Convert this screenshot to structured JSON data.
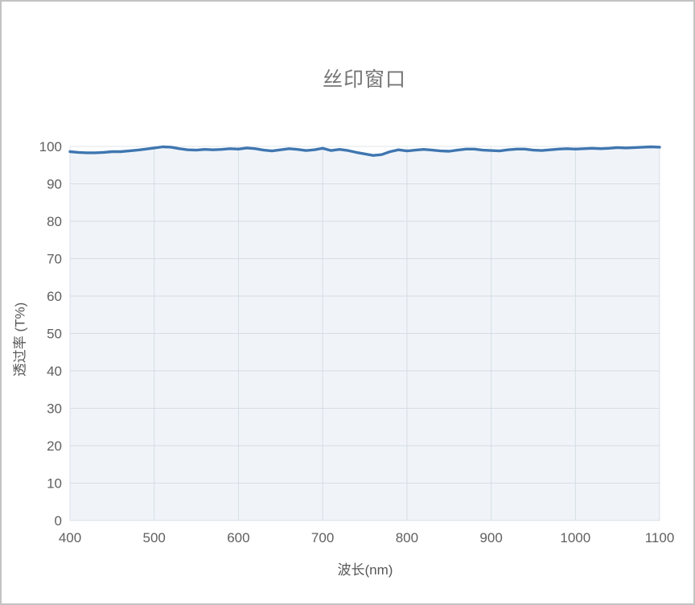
{
  "window": {
    "border_color": "#c2c2c2",
    "background": "#ffffff"
  },
  "chart": {
    "title": "丝印窗口",
    "xlabel": "波长(nm)",
    "ylabel": "透过率 (T%)",
    "title_color": "#757575",
    "axis_title_color": "#575757",
    "tick_label_color": "#606060",
    "grid_color": "#e2e6ea",
    "line_color": "#3f76b0",
    "area_color": "rgba(63,118,176,0.08)"
  },
  "chart_data": {
    "type": "line",
    "title": "丝印窗口",
    "xlabel": "波长(nm)",
    "ylabel": "透过率 (T%)",
    "xlim": [
      400,
      1100
    ],
    "ylim": [
      0,
      100
    ],
    "x_ticks": [
      400,
      500,
      600,
      700,
      800,
      900,
      1000,
      1100
    ],
    "y_ticks": [
      0,
      10,
      20,
      30,
      40,
      50,
      60,
      70,
      80,
      90,
      100
    ],
    "grid": true,
    "legend": false,
    "series": [
      {
        "name": "透过率",
        "x": [
          400,
          410,
          420,
          430,
          440,
          450,
          460,
          470,
          480,
          490,
          500,
          510,
          520,
          530,
          540,
          550,
          560,
          570,
          580,
          590,
          600,
          610,
          620,
          630,
          640,
          650,
          660,
          670,
          680,
          690,
          700,
          710,
          720,
          730,
          740,
          750,
          760,
          770,
          780,
          790,
          800,
          810,
          820,
          830,
          840,
          850,
          860,
          870,
          880,
          890,
          900,
          910,
          920,
          930,
          940,
          950,
          960,
          970,
          980,
          990,
          1000,
          1010,
          1020,
          1030,
          1040,
          1050,
          1060,
          1070,
          1080,
          1090,
          1100
        ],
        "y": [
          98.6,
          98.4,
          98.3,
          98.3,
          98.4,
          98.6,
          98.6,
          98.8,
          99.0,
          99.3,
          99.6,
          99.9,
          99.8,
          99.4,
          99.1,
          99.0,
          99.2,
          99.1,
          99.2,
          99.4,
          99.3,
          99.6,
          99.4,
          99.0,
          98.8,
          99.1,
          99.4,
          99.2,
          98.9,
          99.1,
          99.5,
          98.9,
          99.2,
          98.9,
          98.4,
          98.0,
          97.6,
          97.8,
          98.6,
          99.1,
          98.8,
          99.0,
          99.2,
          99.0,
          98.8,
          98.7,
          99.0,
          99.3,
          99.3,
          99.0,
          98.9,
          98.8,
          99.1,
          99.3,
          99.3,
          99.0,
          98.9,
          99.1,
          99.3,
          99.4,
          99.3,
          99.4,
          99.5,
          99.4,
          99.5,
          99.7,
          99.6,
          99.7,
          99.8,
          99.9,
          99.8
        ]
      }
    ]
  }
}
